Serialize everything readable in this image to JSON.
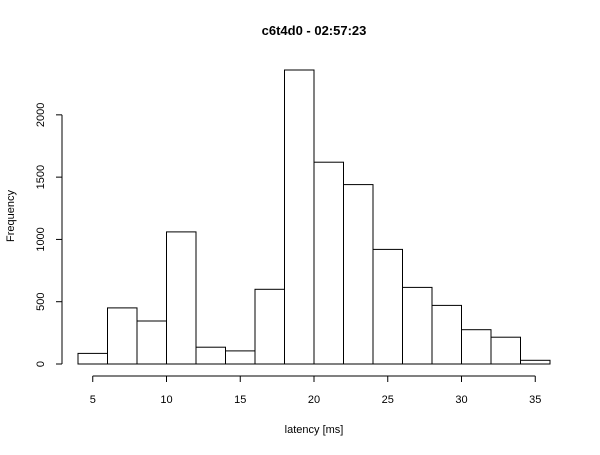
{
  "chart_data": {
    "type": "bar",
    "title": "c6t4d0 - 02:57:23",
    "xlabel": "latency [ms]",
    "ylabel": "Frequency",
    "bins": [
      {
        "x0": 4,
        "x1": 6,
        "count": 85
      },
      {
        "x0": 6,
        "x1": 8,
        "count": 450
      },
      {
        "x0": 8,
        "x1": 10,
        "count": 345
      },
      {
        "x0": 10,
        "x1": 12,
        "count": 1060
      },
      {
        "x0": 12,
        "x1": 14,
        "count": 135
      },
      {
        "x0": 14,
        "x1": 16,
        "count": 105
      },
      {
        "x0": 16,
        "x1": 18,
        "count": 600
      },
      {
        "x0": 18,
        "x1": 20,
        "count": 2360
      },
      {
        "x0": 20,
        "x1": 22,
        "count": 1620
      },
      {
        "x0": 22,
        "x1": 24,
        "count": 1440
      },
      {
        "x0": 24,
        "x1": 26,
        "count": 920
      },
      {
        "x0": 26,
        "x1": 28,
        "count": 615
      },
      {
        "x0": 28,
        "x1": 30,
        "count": 470
      },
      {
        "x0": 30,
        "x1": 32,
        "count": 275
      },
      {
        "x0": 32,
        "x1": 34,
        "count": 215
      },
      {
        "x0": 34,
        "x1": 36,
        "count": 30
      }
    ],
    "xticks": [
      5,
      10,
      15,
      20,
      25,
      30,
      35
    ],
    "yticks": [
      0,
      500,
      1000,
      1500,
      2000
    ],
    "xlim": [
      4,
      36
    ],
    "ylim": [
      0,
      2360
    ],
    "grid": false,
    "legend": "none"
  }
}
